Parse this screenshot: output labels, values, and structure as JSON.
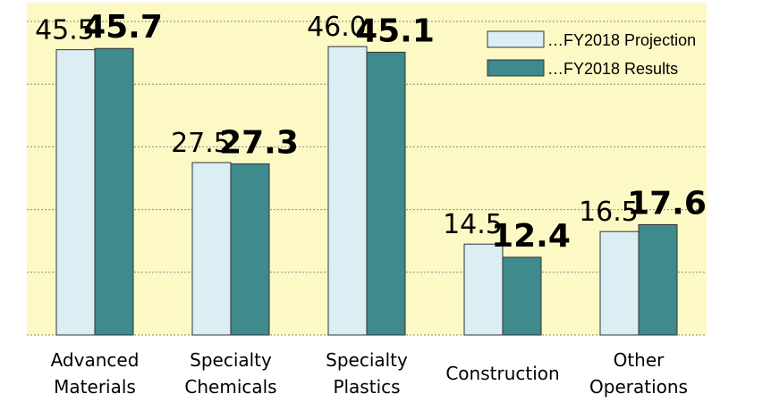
{
  "chart_data": {
    "type": "bar",
    "categories": [
      "Advanced Materials",
      "Specialty Chemicals",
      "Specialty Plastics",
      "Construction",
      "Other Operations"
    ],
    "series": [
      {
        "name": "…FY2018 Projection",
        "color": "#daeef3",
        "values": [
          45.5,
          27.5,
          46.0,
          14.5,
          16.5
        ],
        "value_labels": [
          "45.5",
          "27.5",
          "46.0",
          "14.5",
          "16.5"
        ]
      },
      {
        "name": "…FY2018 Results",
        "color": "#3e8a8c",
        "values": [
          45.7,
          27.3,
          45.1,
          12.4,
          17.6
        ]
      }
    ],
    "ylim": [
      0,
      53
    ],
    "yticks": [
      0,
      10,
      20,
      30,
      40,
      50
    ],
    "grid": true,
    "legend": "top-right"
  }
}
